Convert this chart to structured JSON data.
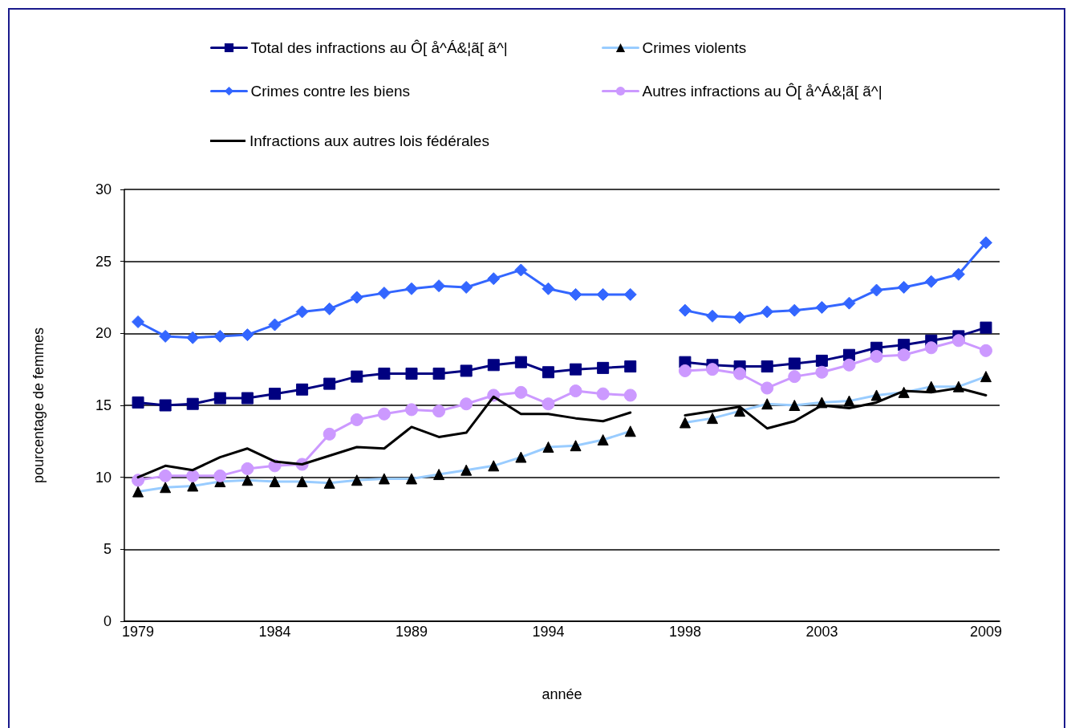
{
  "chart_data": {
    "type": "line",
    "xlabel": "année",
    "ylabel": "pourcentage de femmes",
    "categories": [
      "1979",
      null,
      null,
      null,
      null,
      "1984",
      null,
      null,
      null,
      null,
      "1989",
      null,
      null,
      null,
      null,
      "1994",
      null,
      null,
      null,
      null,
      "1998",
      null,
      null,
      null,
      null,
      "2003",
      null,
      null,
      null,
      null,
      null,
      "2009"
    ],
    "series": [
      {
        "name": "Total des infractions au Ô[ å^Á&¦ã[ ã^|",
        "color": "#000080",
        "marker": "square",
        "values": [
          15.2,
          15.0,
          15.1,
          15.5,
          15.5,
          15.8,
          16.1,
          16.5,
          17.0,
          17.2,
          17.2,
          17.2,
          17.4,
          17.8,
          18.0,
          17.3,
          17.5,
          17.6,
          17.7,
          null,
          18.0,
          17.8,
          17.7,
          17.7,
          17.9,
          18.1,
          18.5,
          19.0,
          19.2,
          19.5,
          19.8,
          20.4
        ]
      },
      {
        "name": "Crimes violents",
        "color": "#99ccff",
        "marker": "triangle",
        "colors": [
          "#000000",
          "#000000",
          "#000000",
          "#000000",
          "#000000",
          "#000000",
          "#000000",
          "#000000",
          "#000000",
          "#000000",
          "#000000",
          "#000000",
          "#000000",
          "#000000",
          "#000000",
          "#000000",
          "#000000",
          "#000000",
          "#000000",
          null,
          "#000000",
          "#000000",
          "#000000",
          "#000000",
          "#000000",
          "#000000",
          "#000000",
          "#000000",
          "#000000",
          "#000000",
          "#000000",
          "#000000"
        ],
        "values": [
          9.0,
          9.3,
          9.4,
          9.7,
          9.8,
          9.7,
          9.7,
          9.6,
          9.8,
          9.9,
          9.9,
          10.2,
          10.5,
          10.8,
          11.4,
          12.1,
          12.2,
          12.6,
          13.2,
          null,
          13.8,
          14.1,
          14.6,
          15.1,
          15.0,
          15.2,
          15.3,
          15.7,
          15.9,
          16.3,
          16.3,
          17.0
        ]
      },
      {
        "name": "Crimes contre les biens",
        "color": "#3366ff",
        "marker": "diamond",
        "values": [
          20.8,
          19.8,
          19.7,
          19.8,
          19.9,
          20.6,
          21.5,
          21.7,
          22.5,
          22.8,
          23.1,
          23.3,
          23.2,
          23.8,
          24.4,
          23.1,
          22.7,
          22.7,
          22.7,
          null,
          21.6,
          21.2,
          21.1,
          21.5,
          21.6,
          21.8,
          22.1,
          23.0,
          23.2,
          23.6,
          24.1,
          26.3
        ]
      },
      {
        "name": "Autres infractions au Ô[ å^Á&¦ã[ ã^|",
        "color": "#cc99ff",
        "marker": "circle",
        "values": [
          9.8,
          10.1,
          10.1,
          10.1,
          10.6,
          10.8,
          10.9,
          13.0,
          14.0,
          14.4,
          14.7,
          14.6,
          15.1,
          15.7,
          15.9,
          15.1,
          16.0,
          15.8,
          15.7,
          null,
          17.4,
          17.5,
          17.2,
          16.2,
          17.0,
          17.3,
          17.8,
          18.4,
          18.5,
          19.0,
          19.5,
          18.8
        ]
      },
      {
        "name": "Infractions aux autres lois fédérales",
        "color": "#000000",
        "marker": "none",
        "values": [
          10.0,
          10.8,
          10.5,
          11.4,
          12.0,
          11.1,
          10.9,
          11.5,
          12.1,
          12.0,
          13.5,
          12.8,
          13.1,
          15.6,
          14.4,
          14.4,
          14.1,
          13.9,
          14.5,
          null,
          14.3,
          14.6,
          14.9,
          13.4,
          13.9,
          15.0,
          14.8,
          15.2,
          16.0,
          15.9,
          16.2,
          15.7
        ]
      }
    ],
    "ylim": [
      0,
      30
    ],
    "yticks": [
      0,
      5,
      10,
      15,
      20,
      25,
      30
    ],
    "grid": "y",
    "legend": "top",
    "line_style": "solid"
  }
}
